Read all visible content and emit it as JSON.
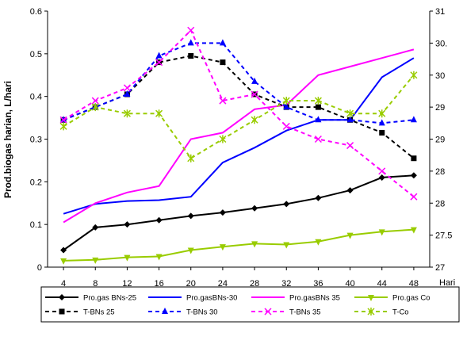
{
  "chart_data": {
    "type": "line",
    "title": "",
    "xlabel": "Hari",
    "ylabel": "Prod.biogas harian, L/hari",
    "y2label": "",
    "x": [
      4,
      8,
      12,
      16,
      20,
      24,
      28,
      32,
      36,
      40,
      44,
      48
    ],
    "x_ticks": [
      "4",
      "8",
      "12",
      "16",
      "20",
      "24",
      "28",
      "32",
      "36",
      "40",
      "44",
      "48"
    ],
    "ylim": [
      0,
      0.6
    ],
    "y_ticks": [
      "0",
      "0.1",
      "0.2",
      "0.3",
      "0.4",
      "0.5",
      "0.6"
    ],
    "y2lim": [
      27,
      31
    ],
    "y2_ticks": [
      "27",
      "27.5",
      "28",
      "28.5",
      "29",
      "29.5",
      "30",
      "30.5",
      "31"
    ],
    "y2_tick_labels_shown": [
      "27",
      "27.5",
      "28",
      "28",
      "29",
      "29",
      "30",
      "30.",
      "31"
    ],
    "grid": false,
    "legend_position": "bottom",
    "series": [
      {
        "name": "Pro.gas BNs-25",
        "axis": "left",
        "color": "#000000",
        "marker": "diamond",
        "dash": "solid",
        "values": [
          0.04,
          0.093,
          0.1,
          0.11,
          0.12,
          0.128,
          0.138,
          0.148,
          0.162,
          0.18,
          0.21,
          0.215
        ]
      },
      {
        "name": "Pro.gasBNs-30",
        "axis": "left",
        "color": "#0000ff",
        "marker": "none",
        "dash": "solid",
        "values": [
          0.125,
          0.148,
          0.155,
          0.157,
          0.165,
          0.245,
          0.28,
          0.32,
          0.345,
          0.345,
          0.445,
          0.49
        ]
      },
      {
        "name": "Pro.gasBNs 35",
        "axis": "left",
        "color": "#ff00ff",
        "marker": "none",
        "dash": "solid",
        "values": [
          0.105,
          0.15,
          0.175,
          0.19,
          0.3,
          0.315,
          0.37,
          0.38,
          0.45,
          0.47,
          0.49,
          0.51
        ]
      },
      {
        "name": "Pro.gas Co",
        "axis": "left",
        "color": "#99cc00",
        "marker": "triangle-down",
        "dash": "solid",
        "values": [
          0.015,
          0.017,
          0.023,
          0.025,
          0.04,
          0.048,
          0.055,
          0.053,
          0.06,
          0.075,
          0.083,
          0.088
        ]
      },
      {
        "name": "T-BNs 25",
        "axis": "right",
        "color": "#000000",
        "marker": "square",
        "dash": "dash",
        "values": [
          29.3,
          29.5,
          29.7,
          30.2,
          30.3,
          30.2,
          29.7,
          29.5,
          29.5,
          29.3,
          29.1,
          28.7
        ]
      },
      {
        "name": "T-BNs 30",
        "axis": "right",
        "color": "#0000ff",
        "marker": "triangle",
        "dash": "dash",
        "values": [
          29.3,
          29.5,
          29.7,
          30.3,
          30.5,
          30.5,
          29.9,
          29.5,
          29.3,
          29.3,
          29.25,
          29.3
        ]
      },
      {
        "name": "T-BNs 35",
        "axis": "right",
        "color": "#ff00ff",
        "marker": "x",
        "dash": "dash",
        "values": [
          29.3,
          29.6,
          29.8,
          30.2,
          30.7,
          29.6,
          29.7,
          29.2,
          29.0,
          28.9,
          28.5,
          28.1
        ]
      },
      {
        "name": "T-Co",
        "axis": "right",
        "color": "#99cc00",
        "marker": "star",
        "dash": "dash",
        "values": [
          29.2,
          29.5,
          29.4,
          29.4,
          28.7,
          29.0,
          29.3,
          29.6,
          29.6,
          29.4,
          29.4,
          30.0
        ]
      }
    ]
  }
}
